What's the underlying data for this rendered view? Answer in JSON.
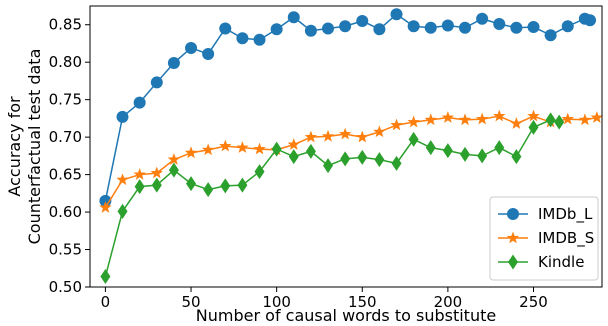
{
  "chart_data": {
    "type": "line",
    "xlabel": "Number of causal words to substitute",
    "ylabel": [
      "Accuracy for",
      "Counterfactual test data"
    ],
    "xlim": [
      -9,
      290
    ],
    "ylim": [
      0.5,
      0.875
    ],
    "x_ticks": [
      "0",
      "50",
      "100",
      "150",
      "200",
      "250"
    ],
    "x_tick_values": [
      0,
      50,
      100,
      150,
      200,
      250
    ],
    "y_ticks": [
      "0.50",
      "0.55",
      "0.60",
      "0.65",
      "0.70",
      "0.75",
      "0.80",
      "0.85"
    ],
    "y_tick_values": [
      0.5,
      0.55,
      0.6,
      0.65,
      0.7,
      0.75,
      0.8,
      0.85
    ],
    "grid": false,
    "legend_position": "lower-right",
    "series": [
      {
        "name": "IMDb_L",
        "color": "#1f77b4",
        "marker": "circle",
        "x": [
          0,
          10,
          20,
          30,
          40,
          50,
          60,
          70,
          80,
          90,
          100,
          110,
          120,
          130,
          140,
          150,
          160,
          170,
          180,
          190,
          200,
          210,
          220,
          230,
          240,
          250,
          260,
          270,
          280,
          283
        ],
        "y": [
          0.615,
          0.727,
          0.746,
          0.773,
          0.799,
          0.819,
          0.811,
          0.845,
          0.832,
          0.83,
          0.844,
          0.86,
          0.842,
          0.845,
          0.848,
          0.855,
          0.844,
          0.864,
          0.848,
          0.846,
          0.849,
          0.846,
          0.858,
          0.851,
          0.846,
          0.847,
          0.836,
          0.848,
          0.858,
          0.856
        ]
      },
      {
        "name": "IMDB_S",
        "color": "#ff7f0e",
        "marker": "star",
        "x": [
          0,
          10,
          20,
          30,
          40,
          50,
          60,
          70,
          80,
          90,
          100,
          110,
          120,
          130,
          140,
          150,
          160,
          170,
          180,
          190,
          200,
          210,
          220,
          230,
          240,
          250,
          260,
          270,
          280,
          287
        ],
        "y": [
          0.606,
          0.643,
          0.65,
          0.652,
          0.67,
          0.679,
          0.683,
          0.688,
          0.686,
          0.684,
          0.683,
          0.69,
          0.7,
          0.701,
          0.704,
          0.7,
          0.707,
          0.716,
          0.72,
          0.723,
          0.726,
          0.723,
          0.724,
          0.728,
          0.718,
          0.728,
          0.72,
          0.724,
          0.723,
          0.726
        ]
      },
      {
        "name": "Kindle",
        "color": "#2ca02c",
        "marker": "diamond",
        "x": [
          0,
          10,
          20,
          30,
          40,
          50,
          60,
          70,
          80,
          90,
          100,
          110,
          120,
          130,
          140,
          150,
          160,
          170,
          180,
          190,
          200,
          210,
          220,
          230,
          240,
          250,
          260,
          265
        ],
        "y": [
          0.514,
          0.601,
          0.634,
          0.636,
          0.656,
          0.638,
          0.63,
          0.635,
          0.636,
          0.654,
          0.684,
          0.674,
          0.681,
          0.662,
          0.671,
          0.673,
          0.67,
          0.665,
          0.697,
          0.686,
          0.682,
          0.677,
          0.675,
          0.686,
          0.674,
          0.713,
          0.723,
          0.72
        ]
      }
    ]
  }
}
